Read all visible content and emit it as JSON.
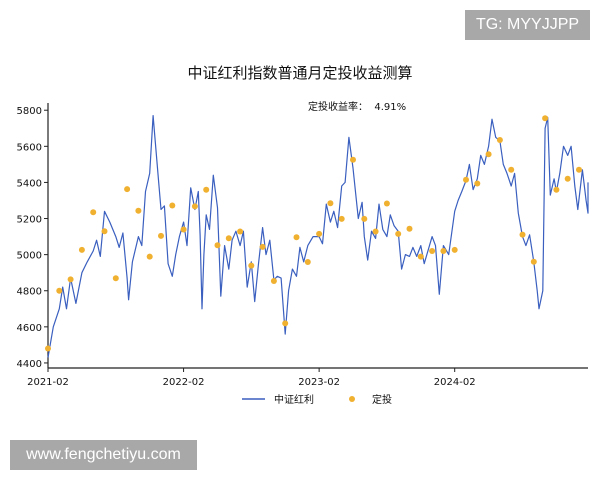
{
  "watermarks": {
    "top_right": "TG: MYYJJPP",
    "bottom_left": "www.fengchetiyu.com"
  },
  "chart_data": {
    "type": "line",
    "title": "中证红利指数普通月定投收益测算",
    "annotation": "定投收益率：  4.91%",
    "xlabel": "",
    "ylabel": "",
    "ylim": [
      4372,
      5840
    ],
    "xlim": [
      "2021-02-01",
      "2025-01-25"
    ],
    "grid": false,
    "legend_position": "bottom",
    "y_ticks": [
      4400,
      4600,
      4800,
      5000,
      5200,
      5400,
      5600,
      5800
    ],
    "x_ticks": [
      "2021-02",
      "2022-02",
      "2023-02",
      "2024-02"
    ],
    "colors": {
      "line": "#3a5fbf",
      "dots": "#f0b030"
    },
    "series": [
      {
        "name": "中证红利",
        "type": "line",
        "points": [
          [
            "2021-02-01",
            4430
          ],
          [
            "2021-02-15",
            4600
          ],
          [
            "2021-03-01",
            4700
          ],
          [
            "2021-03-10",
            4820
          ],
          [
            "2021-03-20",
            4700
          ],
          [
            "2021-04-01",
            4870
          ],
          [
            "2021-04-15",
            4730
          ],
          [
            "2021-05-01",
            4900
          ],
          [
            "2021-05-15",
            4960
          ],
          [
            "2021-06-01",
            5020
          ],
          [
            "2021-06-10",
            5080
          ],
          [
            "2021-06-20",
            4990
          ],
          [
            "2021-07-01",
            5240
          ],
          [
            "2021-07-15",
            5180
          ],
          [
            "2021-08-01",
            5100
          ],
          [
            "2021-08-10",
            5040
          ],
          [
            "2021-08-20",
            5120
          ],
          [
            "2021-09-01",
            4870
          ],
          [
            "2021-09-05",
            4750
          ],
          [
            "2021-09-15",
            4960
          ],
          [
            "2021-10-01",
            5100
          ],
          [
            "2021-10-10",
            5050
          ],
          [
            "2021-10-20",
            5350
          ],
          [
            "2021-11-01",
            5450
          ],
          [
            "2021-11-10",
            5770
          ],
          [
            "2021-11-15",
            5650
          ],
          [
            "2021-11-25",
            5400
          ],
          [
            "2021-12-01",
            5250
          ],
          [
            "2021-12-10",
            5270
          ],
          [
            "2021-12-20",
            4950
          ],
          [
            "2022-01-01",
            4880
          ],
          [
            "2022-01-10",
            5000
          ],
          [
            "2022-01-20",
            5100
          ],
          [
            "2022-02-01",
            5180
          ],
          [
            "2022-02-10",
            5050
          ],
          [
            "2022-02-20",
            5370
          ],
          [
            "2022-03-01",
            5250
          ],
          [
            "2022-03-10",
            5350
          ],
          [
            "2022-03-15",
            5110
          ],
          [
            "2022-03-20",
            4700
          ],
          [
            "2022-03-25",
            5000
          ],
          [
            "2022-04-01",
            5220
          ],
          [
            "2022-04-10",
            5140
          ],
          [
            "2022-04-20",
            5440
          ],
          [
            "2022-05-01",
            5260
          ],
          [
            "2022-05-10",
            4770
          ],
          [
            "2022-05-20",
            5050
          ],
          [
            "2022-06-01",
            4920
          ],
          [
            "2022-06-10",
            5080
          ],
          [
            "2022-06-20",
            5130
          ],
          [
            "2022-07-01",
            5050
          ],
          [
            "2022-07-10",
            5130
          ],
          [
            "2022-07-20",
            4820
          ],
          [
            "2022-08-01",
            4960
          ],
          [
            "2022-08-10",
            4740
          ],
          [
            "2022-08-20",
            4950
          ],
          [
            "2022-09-01",
            5150
          ],
          [
            "2022-09-10",
            5000
          ],
          [
            "2022-09-20",
            5080
          ],
          [
            "2022-10-01",
            4860
          ],
          [
            "2022-10-10",
            4880
          ],
          [
            "2022-10-20",
            4870
          ],
          [
            "2022-11-01",
            4560
          ],
          [
            "2022-11-10",
            4800
          ],
          [
            "2022-11-20",
            4920
          ],
          [
            "2022-12-01",
            4880
          ],
          [
            "2022-12-10",
            5040
          ],
          [
            "2022-12-20",
            4960
          ],
          [
            "2023-01-01",
            5050
          ],
          [
            "2023-01-15",
            5100
          ],
          [
            "2023-02-01",
            5100
          ],
          [
            "2023-02-10",
            5060
          ],
          [
            "2023-02-20",
            5280
          ],
          [
            "2023-03-01",
            5180
          ],
          [
            "2023-03-10",
            5240
          ],
          [
            "2023-03-20",
            5150
          ],
          [
            "2023-04-01",
            5380
          ],
          [
            "2023-04-10",
            5400
          ],
          [
            "2023-04-20",
            5650
          ],
          [
            "2023-05-01",
            5480
          ],
          [
            "2023-05-10",
            5300
          ],
          [
            "2023-05-15",
            5200
          ],
          [
            "2023-05-25",
            5290
          ],
          [
            "2023-06-01",
            5100
          ],
          [
            "2023-06-10",
            4970
          ],
          [
            "2023-06-20",
            5130
          ],
          [
            "2023-07-01",
            5090
          ],
          [
            "2023-07-10",
            5280
          ],
          [
            "2023-07-20",
            5140
          ],
          [
            "2023-08-01",
            5100
          ],
          [
            "2023-08-10",
            5220
          ],
          [
            "2023-08-20",
            5160
          ],
          [
            "2023-09-01",
            5130
          ],
          [
            "2023-09-10",
            4920
          ],
          [
            "2023-09-20",
            5000
          ],
          [
            "2023-10-01",
            4990
          ],
          [
            "2023-10-10",
            5040
          ],
          [
            "2023-10-20",
            4990
          ],
          [
            "2023-11-01",
            5050
          ],
          [
            "2023-11-10",
            4950
          ],
          [
            "2023-12-01",
            5100
          ],
          [
            "2023-12-10",
            5050
          ],
          [
            "2023-12-20",
            4780
          ],
          [
            "2024-01-01",
            5050
          ],
          [
            "2024-01-15",
            5000
          ],
          [
            "2024-02-01",
            5240
          ],
          [
            "2024-02-10",
            5300
          ],
          [
            "2024-02-20",
            5350
          ],
          [
            "2024-03-01",
            5410
          ],
          [
            "2024-03-10",
            5500
          ],
          [
            "2024-03-20",
            5360
          ],
          [
            "2024-04-01",
            5420
          ],
          [
            "2024-04-10",
            5550
          ],
          [
            "2024-04-20",
            5500
          ],
          [
            "2024-05-01",
            5600
          ],
          [
            "2024-05-10",
            5750
          ],
          [
            "2024-05-20",
            5650
          ],
          [
            "2024-06-01",
            5630
          ],
          [
            "2024-06-10",
            5500
          ],
          [
            "2024-06-20",
            5450
          ],
          [
            "2024-07-01",
            5380
          ],
          [
            "2024-07-10",
            5450
          ],
          [
            "2024-07-20",
            5230
          ],
          [
            "2024-08-01",
            5100
          ],
          [
            "2024-08-10",
            5050
          ],
          [
            "2024-08-20",
            5110
          ],
          [
            "2024-09-01",
            4960
          ],
          [
            "2024-09-10",
            4800
          ],
          [
            "2024-09-15",
            4700
          ],
          [
            "2024-09-25",
            4800
          ],
          [
            "2024-10-01",
            5700
          ],
          [
            "2024-10-08",
            5760
          ],
          [
            "2024-10-15",
            5330
          ],
          [
            "2024-10-25",
            5420
          ],
          [
            "2024-11-01",
            5350
          ],
          [
            "2024-11-10",
            5450
          ],
          [
            "2024-11-20",
            5600
          ],
          [
            "2024-12-01",
            5550
          ],
          [
            "2024-12-10",
            5600
          ],
          [
            "2024-12-20",
            5380
          ],
          [
            "2024-12-28",
            5250
          ],
          [
            "2025-01-10",
            5470
          ],
          [
            "2025-01-20",
            5300
          ],
          [
            "2025-01-25",
            5230
          ],
          [
            "2025-02-01",
            5400
          ]
        ]
      },
      {
        "name": "定投",
        "type": "scatter",
        "points": [
          [
            "2021-02",
            4480
          ],
          [
            "2021-03",
            4800
          ],
          [
            "2021-04",
            4863
          ],
          [
            "2021-05",
            5026
          ],
          [
            "2021-06",
            5235
          ],
          [
            "2021-07",
            5130
          ],
          [
            "2021-08",
            4869
          ],
          [
            "2021-09",
            5363
          ],
          [
            "2021-10",
            5243
          ],
          [
            "2021-11",
            4989
          ],
          [
            "2021-12",
            5104
          ],
          [
            "2022-01",
            5272
          ],
          [
            "2022-02",
            5139
          ],
          [
            "2022-03",
            5267
          ],
          [
            "2022-04",
            5359
          ],
          [
            "2022-05",
            5052
          ],
          [
            "2022-06",
            5091
          ],
          [
            "2022-07",
            5128
          ],
          [
            "2022-08",
            4939
          ],
          [
            "2022-09",
            5043
          ],
          [
            "2022-10",
            4854
          ],
          [
            "2022-11",
            4619
          ],
          [
            "2022-12",
            5096
          ],
          [
            "2023-01",
            4959
          ],
          [
            "2023-02",
            5115
          ],
          [
            "2023-03",
            5285
          ],
          [
            "2023-04",
            5198
          ],
          [
            "2023-05",
            5526
          ],
          [
            "2023-06",
            5198
          ],
          [
            "2023-07",
            5128
          ],
          [
            "2023-08",
            5283
          ],
          [
            "2023-09",
            5115
          ],
          [
            "2023-10",
            5143
          ],
          [
            "2023-11",
            4989
          ],
          [
            "2023-12",
            5020
          ],
          [
            "2024-01",
            5020
          ],
          [
            "2024-02",
            5026
          ],
          [
            "2024-03",
            5415
          ],
          [
            "2024-04",
            5394
          ],
          [
            "2024-05",
            5556
          ],
          [
            "2024-06",
            5635
          ],
          [
            "2024-07",
            5470
          ],
          [
            "2024-08",
            5111
          ],
          [
            "2024-09",
            4961
          ],
          [
            "2024-10",
            5756
          ],
          [
            "2024-11",
            5359
          ],
          [
            "2024-12",
            5420
          ],
          [
            "2025-01",
            5470
          ]
        ]
      }
    ]
  }
}
